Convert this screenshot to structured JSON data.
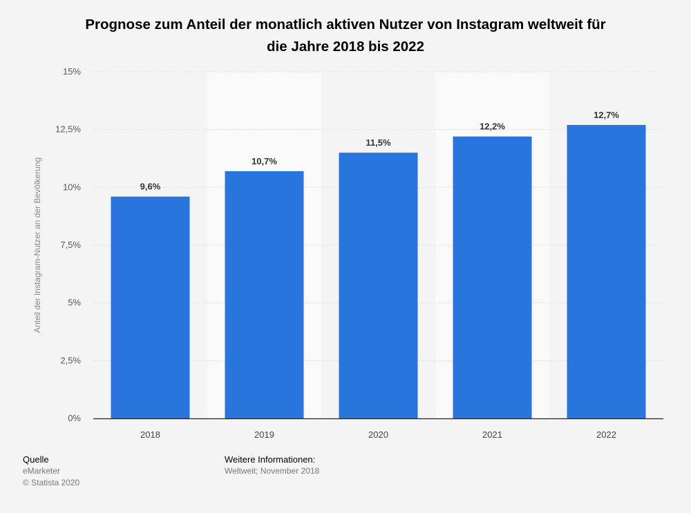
{
  "title": {
    "line1": "Prognose zum Anteil der monatlich aktiven Nutzer von Instagram weltweit für",
    "line2": "die Jahre 2018 bis 2022"
  },
  "chart_data": {
    "type": "bar",
    "categories": [
      "2018",
      "2019",
      "2020",
      "2021",
      "2022"
    ],
    "values": [
      9.6,
      10.7,
      11.5,
      12.2,
      12.7
    ],
    "value_labels": [
      "9,6%",
      "10,7%",
      "11,5%",
      "12,2%",
      "12,7%"
    ],
    "ylabel": "Anteil der Instagram-Nutzer an der Bevölkerung",
    "ylim": [
      0,
      15
    ],
    "yticks": [
      0,
      2.5,
      5,
      7.5,
      10,
      12.5,
      15
    ],
    "ytick_labels": [
      "0%",
      "2,5%",
      "5%",
      "7,5%",
      "10%",
      "12,5%",
      "15%"
    ],
    "grid": true,
    "bar_color": "#2876dd"
  },
  "footer": {
    "source_heading": "Quelle",
    "source": "eMarketer",
    "copyright": "© Statista 2020",
    "info_heading": "Weitere Informationen:",
    "info": "Weltweit; November 2018"
  }
}
